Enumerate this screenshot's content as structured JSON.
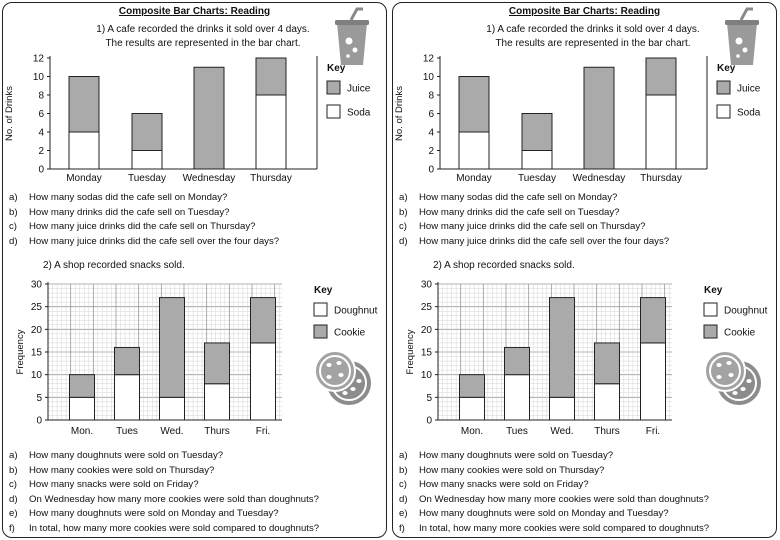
{
  "worksheet": {
    "title": "Composite Bar Charts: Reading",
    "q1": {
      "intro_line1": "1)  A cafe recorded the drinks it sold over 4 days.",
      "intro_line2": "The results are represented in the bar chart.",
      "questions": [
        {
          "letter": "a)",
          "text": "How many sodas did the cafe sell on Monday?"
        },
        {
          "letter": "b)",
          "text": "How many drinks did the cafe sell on Tuesday?"
        },
        {
          "letter": "c)",
          "text": "How many juice drinks did the cafe sell on Thursday?"
        },
        {
          "letter": "d)",
          "text": "How many juice drinks did the cafe sell over the four days?"
        }
      ]
    },
    "q2": {
      "intro": "2)  A shop recorded snacks sold.",
      "questions": [
        {
          "letter": "a)",
          "text": "How many doughnuts were sold on Tuesday?"
        },
        {
          "letter": "b)",
          "text": "How many cookies were sold on Thursday?"
        },
        {
          "letter": "c)",
          "text": "How many snacks were sold on Friday?"
        },
        {
          "letter": "d)",
          "text": "On Wednesday how many more cookies were sold than doughnuts?"
        },
        {
          "letter": "e)",
          "text": "How many doughnuts were sold on Monday and Tuesday?"
        },
        {
          "letter": "f)",
          "text": "In total, how many more cookies were sold compared to doughnuts?"
        }
      ]
    },
    "icons": [
      "drink-cup-icon",
      "cookies-icon"
    ],
    "colors": {
      "gray_fill": "#aaaaaa",
      "white_fill": "#ffffff",
      "grid": "#bbbbbb"
    }
  },
  "chart_data": [
    {
      "type": "bar",
      "stacked": true,
      "categories": [
        "Monday",
        "Tuesday",
        "Wednesday",
        "Thursday"
      ],
      "series": [
        {
          "name": "Soda",
          "values": [
            4,
            2,
            0,
            8
          ]
        },
        {
          "name": "Juice",
          "values": [
            6,
            4,
            11,
            4
          ]
        }
      ],
      "ylabel": "No. of Drinks",
      "ylim": [
        0,
        12
      ],
      "yticks": [
        0,
        2,
        4,
        6,
        8,
        10,
        12
      ],
      "key_title": "Key",
      "legend_placement": "right",
      "grid": false
    },
    {
      "type": "bar",
      "stacked": true,
      "categories": [
        "Mon.",
        "Tues",
        "Wed.",
        "Thurs",
        "Fri."
      ],
      "series": [
        {
          "name": "Doughnut",
          "values": [
            5,
            10,
            5,
            8,
            17
          ]
        },
        {
          "name": "Cookie",
          "values": [
            5,
            6,
            22,
            9,
            10
          ]
        }
      ],
      "ylabel": "Frequency",
      "ylim": [
        0,
        30
      ],
      "yticks": [
        0,
        5,
        10,
        15,
        20,
        25,
        30
      ],
      "key_title": "Key",
      "legend_placement": "right",
      "grid": true
    }
  ]
}
